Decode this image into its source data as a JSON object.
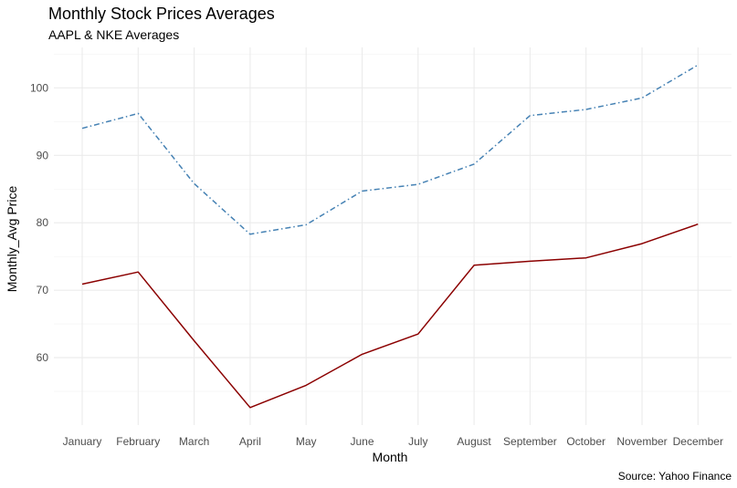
{
  "chart_data": {
    "type": "line",
    "title": "Monthly Stock Prices Averages",
    "subtitle": "AAPL & NKE Averages",
    "xlabel": "Month",
    "ylabel": "Monthly_Avg Price",
    "caption": "Source: Yahoo Finance",
    "categories": [
      "January",
      "February",
      "March",
      "April",
      "May",
      "June",
      "July",
      "August",
      "September",
      "October",
      "November",
      "December"
    ],
    "yticks": [
      60,
      70,
      80,
      90,
      100
    ],
    "ylim": [
      50,
      106
    ],
    "grid": true,
    "legend": "none",
    "series": [
      {
        "color": "#4682b4",
        "line_style": "dotdash",
        "values": [
          94.0,
          96.2,
          85.8,
          78.3,
          79.7,
          84.7,
          85.7,
          88.7,
          95.9,
          96.8,
          98.5,
          103.4
        ]
      },
      {
        "color": "#8b0000",
        "line_style": "solid",
        "values": [
          70.9,
          72.7,
          62.5,
          52.6,
          55.9,
          60.5,
          63.5,
          73.7,
          74.3,
          74.8,
          76.9,
          79.8
        ]
      }
    ]
  }
}
